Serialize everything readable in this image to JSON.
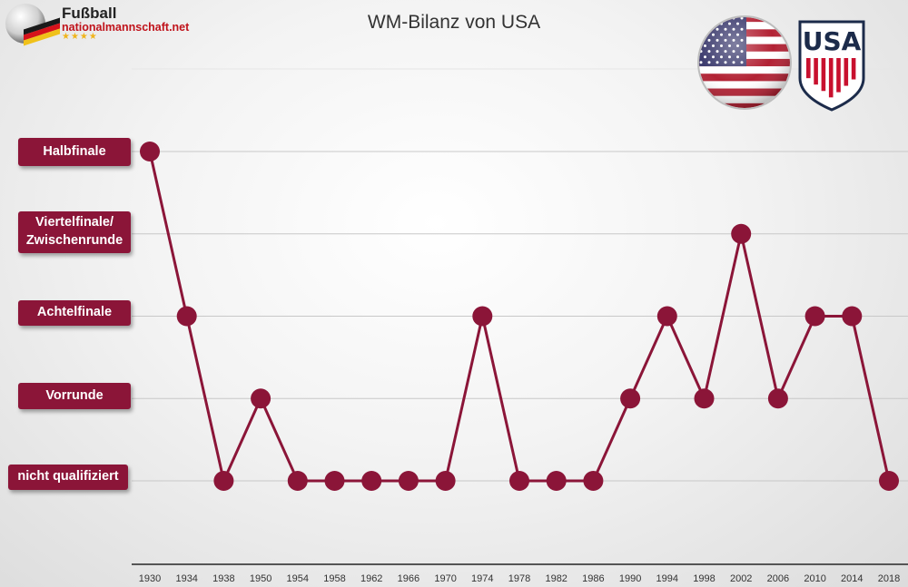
{
  "header": {
    "logo_title": "Fußball",
    "logo_subtitle": "nationalmannschaft.net",
    "logo_stars": "★★★★",
    "title": "WM-Bilanz von USA"
  },
  "crest": {
    "text": "USA"
  },
  "colors": {
    "accent": "#8b1538",
    "gridline": "#c8c8c8",
    "axis": "#555555",
    "flag_red": "#b22234",
    "flag_blue": "#3c3b6e"
  },
  "chart_data": {
    "type": "line",
    "title": "WM-Bilanz von USA",
    "xlabel": "",
    "ylabel": "",
    "y_categories": [
      "nicht qualifiziert",
      "Vorrunde",
      "Achtelfinale",
      "Viertelfinale/ Zwischenrunde",
      "Halbfinale"
    ],
    "x": [
      "1930",
      "1934",
      "1938",
      "1950",
      "1954",
      "1958",
      "1962",
      "1966",
      "1970",
      "1974",
      "1978",
      "1982",
      "1986",
      "1990",
      "1994",
      "1998",
      "2002",
      "2006",
      "2010",
      "2014",
      "2018"
    ],
    "series": [
      {
        "values": [
          4,
          2,
          0,
          1,
          0,
          0,
          0,
          0,
          0,
          2,
          0,
          0,
          0,
          1,
          2,
          1,
          3,
          1,
          2,
          2,
          0
        ]
      }
    ],
    "grid": true,
    "legend": "none"
  },
  "y_labels": {
    "halbfinale": "Halbfinale",
    "viertelfinale_line1": "Viertelfinale/",
    "viertelfinale_line2": "Zwischenrunde",
    "achtelfinale": "Achtelfinale",
    "vorrunde": "Vorrunde",
    "nicht_qualifiziert": "nicht qualifiziert"
  }
}
